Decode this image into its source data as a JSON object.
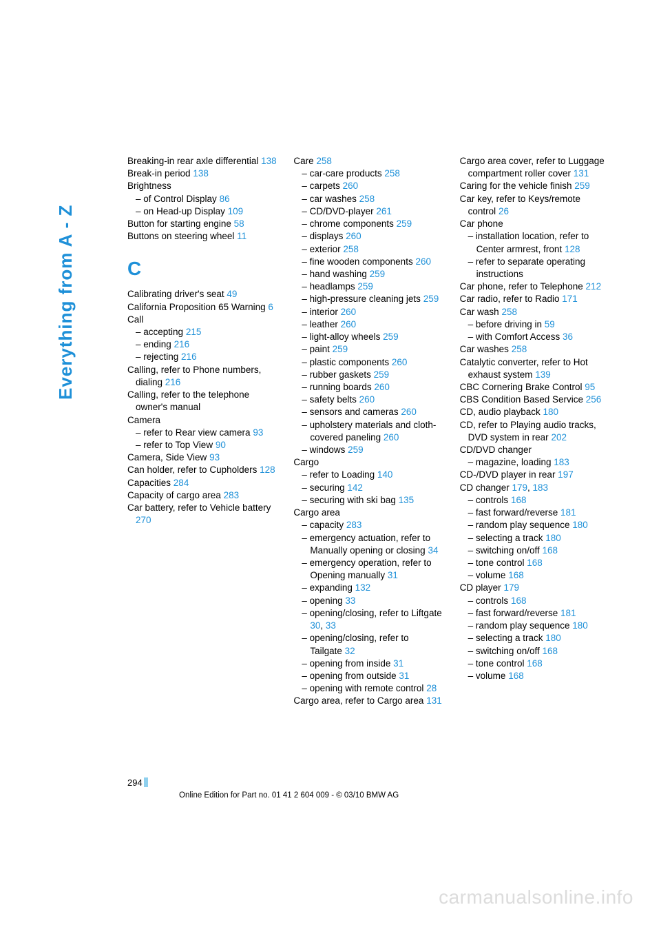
{
  "side_label": "Everything from A - Z",
  "section_letter": "C",
  "page_number": "294",
  "footer": "Online Edition for Part no. 01 41 2 604 009 - © 03/10 BMW AG",
  "watermark": "carmanualsonline.info",
  "link_color": "#1e90d8",
  "text_color": "#000000",
  "columns": {
    "col1": [
      {
        "t": "entry",
        "parts": [
          {
            "text": "Breaking-in rear axle differential "
          },
          {
            "ref": "138"
          }
        ]
      },
      {
        "t": "entry",
        "parts": [
          {
            "text": "Break-in period "
          },
          {
            "ref": "138"
          }
        ]
      },
      {
        "t": "entry",
        "parts": [
          {
            "text": "Brightness"
          }
        ]
      },
      {
        "t": "sub",
        "parts": [
          {
            "text": "– of Control Display "
          },
          {
            "ref": "86"
          }
        ]
      },
      {
        "t": "sub",
        "parts": [
          {
            "text": "– on Head-up Display "
          },
          {
            "ref": "109"
          }
        ]
      },
      {
        "t": "entry",
        "parts": [
          {
            "text": "Button for starting engine "
          },
          {
            "ref": "58"
          }
        ]
      },
      {
        "t": "entry",
        "parts": [
          {
            "text": "Buttons on steering wheel "
          },
          {
            "ref": "11"
          }
        ]
      },
      {
        "t": "letter"
      },
      {
        "t": "entry",
        "parts": [
          {
            "text": "Calibrating driver's seat "
          },
          {
            "ref": "49"
          }
        ]
      },
      {
        "t": "entry",
        "parts": [
          {
            "text": "California Proposition 65 Warning "
          },
          {
            "ref": "6"
          }
        ]
      },
      {
        "t": "entry",
        "parts": [
          {
            "text": "Call"
          }
        ]
      },
      {
        "t": "sub",
        "parts": [
          {
            "text": "– accepting "
          },
          {
            "ref": "215"
          }
        ]
      },
      {
        "t": "sub",
        "parts": [
          {
            "text": "– ending "
          },
          {
            "ref": "216"
          }
        ]
      },
      {
        "t": "sub",
        "parts": [
          {
            "text": "– rejecting "
          },
          {
            "ref": "216"
          }
        ]
      },
      {
        "t": "entry",
        "parts": [
          {
            "text": "Calling, refer to Phone numbers, dialing "
          },
          {
            "ref": "216"
          }
        ]
      },
      {
        "t": "entry",
        "parts": [
          {
            "text": "Calling, refer to the telephone owner's manual"
          }
        ]
      },
      {
        "t": "entry",
        "parts": [
          {
            "text": "Camera"
          }
        ]
      },
      {
        "t": "sub",
        "parts": [
          {
            "text": "– refer to Rear view camera "
          },
          {
            "ref": "93"
          }
        ]
      },
      {
        "t": "sub",
        "parts": [
          {
            "text": "– refer to Top View "
          },
          {
            "ref": "90"
          }
        ]
      },
      {
        "t": "entry",
        "parts": [
          {
            "text": "Camera, Side View "
          },
          {
            "ref": "93"
          }
        ]
      },
      {
        "t": "entry",
        "parts": [
          {
            "text": "Can holder, refer to Cupholders "
          },
          {
            "ref": "128"
          }
        ]
      },
      {
        "t": "entry",
        "parts": [
          {
            "text": "Capacities "
          },
          {
            "ref": "284"
          }
        ]
      },
      {
        "t": "entry",
        "parts": [
          {
            "text": "Capacity of cargo area "
          },
          {
            "ref": "283"
          }
        ]
      },
      {
        "t": "entry",
        "parts": [
          {
            "text": "Car battery, refer to Vehicle battery "
          },
          {
            "ref": "270"
          }
        ]
      }
    ],
    "col2": [
      {
        "t": "entry",
        "parts": [
          {
            "text": "Care "
          },
          {
            "ref": "258"
          }
        ]
      },
      {
        "t": "sub",
        "parts": [
          {
            "text": "– car-care products "
          },
          {
            "ref": "258"
          }
        ]
      },
      {
        "t": "sub",
        "parts": [
          {
            "text": "– carpets "
          },
          {
            "ref": "260"
          }
        ]
      },
      {
        "t": "sub",
        "parts": [
          {
            "text": "– car washes "
          },
          {
            "ref": "258"
          }
        ]
      },
      {
        "t": "sub",
        "parts": [
          {
            "text": "– CD/DVD-player "
          },
          {
            "ref": "261"
          }
        ]
      },
      {
        "t": "sub",
        "parts": [
          {
            "text": "– chrome components "
          },
          {
            "ref": "259"
          }
        ]
      },
      {
        "t": "sub",
        "parts": [
          {
            "text": "– displays "
          },
          {
            "ref": "260"
          }
        ]
      },
      {
        "t": "sub",
        "parts": [
          {
            "text": "– exterior "
          },
          {
            "ref": "258"
          }
        ]
      },
      {
        "t": "sub",
        "parts": [
          {
            "text": "– fine wooden components "
          },
          {
            "ref": "260"
          }
        ]
      },
      {
        "t": "sub",
        "parts": [
          {
            "text": "– hand washing "
          },
          {
            "ref": "259"
          }
        ]
      },
      {
        "t": "sub",
        "parts": [
          {
            "text": "– headlamps "
          },
          {
            "ref": "259"
          }
        ]
      },
      {
        "t": "sub",
        "parts": [
          {
            "text": "– high-pressure cleaning jets "
          },
          {
            "ref": "259"
          }
        ]
      },
      {
        "t": "sub",
        "parts": [
          {
            "text": "– interior "
          },
          {
            "ref": "260"
          }
        ]
      },
      {
        "t": "sub",
        "parts": [
          {
            "text": "– leather "
          },
          {
            "ref": "260"
          }
        ]
      },
      {
        "t": "sub",
        "parts": [
          {
            "text": "– light-alloy wheels "
          },
          {
            "ref": "259"
          }
        ]
      },
      {
        "t": "sub",
        "parts": [
          {
            "text": "– paint "
          },
          {
            "ref": "259"
          }
        ]
      },
      {
        "t": "sub",
        "parts": [
          {
            "text": "– plastic components "
          },
          {
            "ref": "260"
          }
        ]
      },
      {
        "t": "sub",
        "parts": [
          {
            "text": "– rubber gaskets "
          },
          {
            "ref": "259"
          }
        ]
      },
      {
        "t": "sub",
        "parts": [
          {
            "text": "– running boards "
          },
          {
            "ref": "260"
          }
        ]
      },
      {
        "t": "sub",
        "parts": [
          {
            "text": "– safety belts "
          },
          {
            "ref": "260"
          }
        ]
      },
      {
        "t": "sub",
        "parts": [
          {
            "text": "– sensors and cameras "
          },
          {
            "ref": "260"
          }
        ]
      },
      {
        "t": "sub",
        "parts": [
          {
            "text": "– upholstery materials and cloth-covered paneling "
          },
          {
            "ref": "260"
          }
        ]
      },
      {
        "t": "sub",
        "parts": [
          {
            "text": "– windows "
          },
          {
            "ref": "259"
          }
        ]
      },
      {
        "t": "entry",
        "parts": [
          {
            "text": "Cargo"
          }
        ]
      },
      {
        "t": "sub",
        "parts": [
          {
            "text": "– refer to Loading "
          },
          {
            "ref": "140"
          }
        ]
      },
      {
        "t": "sub",
        "parts": [
          {
            "text": "– securing "
          },
          {
            "ref": "142"
          }
        ]
      },
      {
        "t": "sub",
        "parts": [
          {
            "text": "– securing with ski bag "
          },
          {
            "ref": "135"
          }
        ]
      },
      {
        "t": "entry",
        "parts": [
          {
            "text": "Cargo area"
          }
        ]
      },
      {
        "t": "sub",
        "parts": [
          {
            "text": "– capacity "
          },
          {
            "ref": "283"
          }
        ]
      },
      {
        "t": "sub",
        "parts": [
          {
            "text": "– emergency actuation, refer to Manually opening or closing "
          },
          {
            "ref": "34"
          }
        ]
      },
      {
        "t": "sub",
        "parts": [
          {
            "text": "– emergency operation, refer to Opening manually "
          },
          {
            "ref": "31"
          }
        ]
      },
      {
        "t": "sub",
        "parts": [
          {
            "text": "– expanding "
          },
          {
            "ref": "132"
          }
        ]
      },
      {
        "t": "sub",
        "parts": [
          {
            "text": "– opening "
          },
          {
            "ref": "33"
          }
        ]
      },
      {
        "t": "sub",
        "parts": [
          {
            "text": "– opening/closing, refer to Liftgate "
          },
          {
            "ref": "30"
          },
          {
            "text": ", "
          },
          {
            "ref": "33"
          }
        ]
      },
      {
        "t": "sub",
        "parts": [
          {
            "text": "– opening/closing, refer to Tailgate "
          },
          {
            "ref": "32"
          }
        ]
      },
      {
        "t": "sub",
        "parts": [
          {
            "text": "– opening from inside "
          },
          {
            "ref": "31"
          }
        ]
      },
      {
        "t": "sub",
        "parts": [
          {
            "text": "– opening from outside "
          },
          {
            "ref": "31"
          }
        ]
      },
      {
        "t": "sub",
        "parts": [
          {
            "text": "– opening with remote control "
          },
          {
            "ref": "28"
          }
        ]
      },
      {
        "t": "entry",
        "parts": [
          {
            "text": "Cargo area, refer to Cargo area "
          },
          {
            "ref": "131"
          }
        ]
      }
    ],
    "col3": [
      {
        "t": "entry",
        "parts": [
          {
            "text": "Cargo area cover, refer to Luggage compartment roller cover "
          },
          {
            "ref": "131"
          }
        ]
      },
      {
        "t": "entry",
        "parts": [
          {
            "text": "Caring for the vehicle finish "
          },
          {
            "ref": "259"
          }
        ]
      },
      {
        "t": "entry",
        "parts": [
          {
            "text": "Car key, refer to Keys/remote control "
          },
          {
            "ref": "26"
          }
        ]
      },
      {
        "t": "entry",
        "parts": [
          {
            "text": "Car phone"
          }
        ]
      },
      {
        "t": "sub",
        "parts": [
          {
            "text": "– installation location, refer to Center armrest, front "
          },
          {
            "ref": "128"
          }
        ]
      },
      {
        "t": "sub",
        "parts": [
          {
            "text": "– refer to separate operating instructions"
          }
        ]
      },
      {
        "t": "entry",
        "parts": [
          {
            "text": "Car phone, refer to Telephone "
          },
          {
            "ref": "212"
          }
        ]
      },
      {
        "t": "entry",
        "parts": [
          {
            "text": "Car radio, refer to Radio "
          },
          {
            "ref": "171"
          }
        ]
      },
      {
        "t": "entry",
        "parts": [
          {
            "text": "Car wash "
          },
          {
            "ref": "258"
          }
        ]
      },
      {
        "t": "sub",
        "parts": [
          {
            "text": "– before driving in "
          },
          {
            "ref": "59"
          }
        ]
      },
      {
        "t": "sub",
        "parts": [
          {
            "text": "– with Comfort Access "
          },
          {
            "ref": "36"
          }
        ]
      },
      {
        "t": "entry",
        "parts": [
          {
            "text": "Car washes "
          },
          {
            "ref": "258"
          }
        ]
      },
      {
        "t": "entry",
        "parts": [
          {
            "text": "Catalytic converter, refer to Hot exhaust system "
          },
          {
            "ref": "139"
          }
        ]
      },
      {
        "t": "entry",
        "parts": [
          {
            "text": "CBC Cornering Brake Control "
          },
          {
            "ref": "95"
          }
        ]
      },
      {
        "t": "entry",
        "parts": [
          {
            "text": "CBS Condition Based Service "
          },
          {
            "ref": "256"
          }
        ]
      },
      {
        "t": "entry",
        "parts": [
          {
            "text": "CD, audio playback "
          },
          {
            "ref": "180"
          }
        ]
      },
      {
        "t": "entry",
        "parts": [
          {
            "text": "CD, refer to Playing audio tracks, DVD system in rear "
          },
          {
            "ref": "202"
          }
        ]
      },
      {
        "t": "entry",
        "parts": [
          {
            "text": "CD/DVD changer"
          }
        ]
      },
      {
        "t": "sub",
        "parts": [
          {
            "text": "– magazine, loading "
          },
          {
            "ref": "183"
          }
        ]
      },
      {
        "t": "entry",
        "parts": [
          {
            "text": "CD-/DVD player in rear "
          },
          {
            "ref": "197"
          }
        ]
      },
      {
        "t": "entry",
        "parts": [
          {
            "text": "CD changer "
          },
          {
            "ref": "179"
          },
          {
            "text": ", "
          },
          {
            "ref": "183"
          }
        ]
      },
      {
        "t": "sub",
        "parts": [
          {
            "text": "– controls "
          },
          {
            "ref": "168"
          }
        ]
      },
      {
        "t": "sub",
        "parts": [
          {
            "text": "– fast forward/reverse "
          },
          {
            "ref": "181"
          }
        ]
      },
      {
        "t": "sub",
        "parts": [
          {
            "text": "– random play sequence "
          },
          {
            "ref": "180"
          }
        ]
      },
      {
        "t": "sub",
        "parts": [
          {
            "text": "– selecting a track "
          },
          {
            "ref": "180"
          }
        ]
      },
      {
        "t": "sub",
        "parts": [
          {
            "text": "– switching on/off "
          },
          {
            "ref": "168"
          }
        ]
      },
      {
        "t": "sub",
        "parts": [
          {
            "text": "– tone control "
          },
          {
            "ref": "168"
          }
        ]
      },
      {
        "t": "sub",
        "parts": [
          {
            "text": "– volume "
          },
          {
            "ref": "168"
          }
        ]
      },
      {
        "t": "entry",
        "parts": [
          {
            "text": "CD player "
          },
          {
            "ref": "179"
          }
        ]
      },
      {
        "t": "sub",
        "parts": [
          {
            "text": "– controls "
          },
          {
            "ref": "168"
          }
        ]
      },
      {
        "t": "sub",
        "parts": [
          {
            "text": "– fast forward/reverse "
          },
          {
            "ref": "181"
          }
        ]
      },
      {
        "t": "sub",
        "parts": [
          {
            "text": "– random play sequence "
          },
          {
            "ref": "180"
          }
        ]
      },
      {
        "t": "sub",
        "parts": [
          {
            "text": "– selecting a track "
          },
          {
            "ref": "180"
          }
        ]
      },
      {
        "t": "sub",
        "parts": [
          {
            "text": "– switching on/off "
          },
          {
            "ref": "168"
          }
        ]
      },
      {
        "t": "sub",
        "parts": [
          {
            "text": "– tone control "
          },
          {
            "ref": "168"
          }
        ]
      },
      {
        "t": "sub",
        "parts": [
          {
            "text": "– volume "
          },
          {
            "ref": "168"
          }
        ]
      }
    ]
  }
}
